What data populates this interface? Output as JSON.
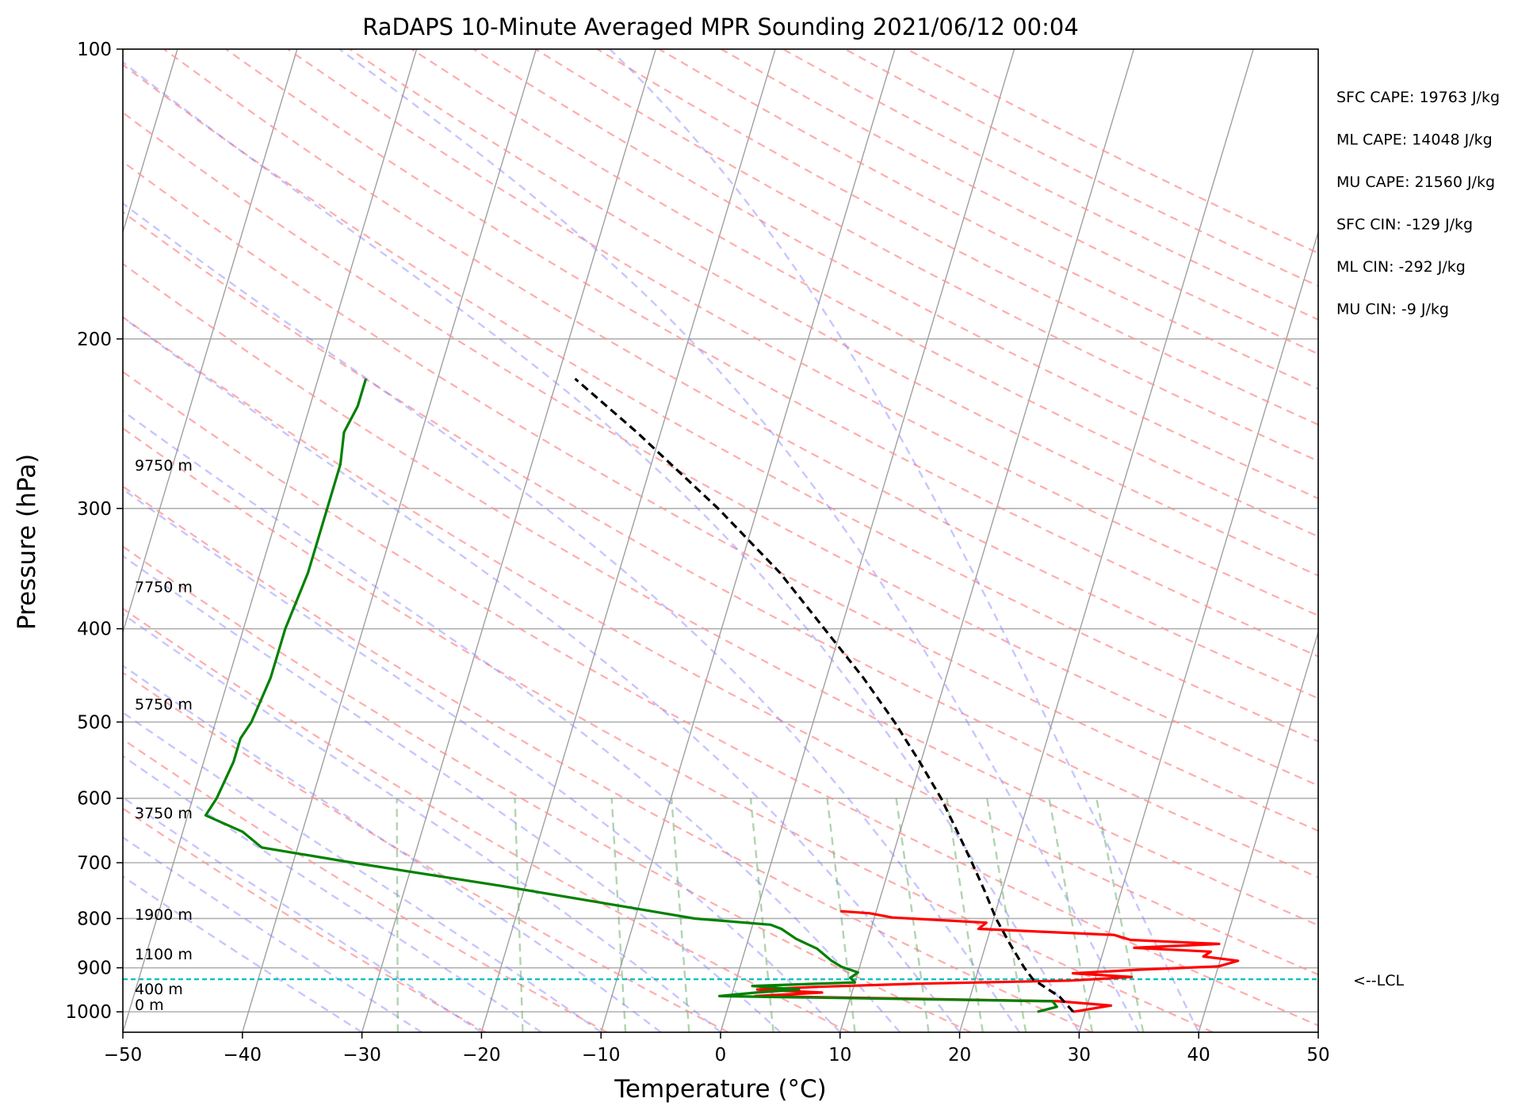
{
  "chart_data": {
    "type": "line",
    "subtype": "skew-t log-p sounding",
    "title": "RaDAPS 10-Minute Averaged MPR Sounding 2021/06/12 00:04",
    "xlabel": "Temperature (°C)",
    "ylabel": "Pressure (hPa)",
    "xlim": [
      -50,
      50
    ],
    "ylim": [
      1050,
      100
    ],
    "y_scale": "log",
    "grid": true,
    "x_ticks": [
      "−50",
      "−40",
      "−30",
      "−20",
      "−10",
      "0",
      "10",
      "20",
      "30",
      "40",
      "50"
    ],
    "y_ticks": [
      "100",
      "200",
      "300",
      "400",
      "500",
      "600",
      "700",
      "800",
      "900",
      "1000"
    ],
    "series": [
      {
        "key": "temperature",
        "color": "#ff0000",
        "points": [
          [
            1000,
            29.0
          ],
          [
            985,
            32.0
          ],
          [
            975,
            27.5
          ],
          [
            963,
            2.0
          ],
          [
            955,
            7.5
          ],
          [
            948,
            2.0
          ],
          [
            942,
            7.0
          ],
          [
            935,
            15.0
          ],
          [
            928,
            28.0
          ],
          [
            920,
            33.0
          ],
          [
            912,
            28.0
          ],
          [
            904,
            33.5
          ],
          [
            897,
            40.0
          ],
          [
            885,
            41.5
          ],
          [
            876,
            38.5
          ],
          [
            866,
            39.0
          ],
          [
            858,
            32.5
          ],
          [
            850,
            39.5
          ],
          [
            842,
            32.0
          ],
          [
            832,
            30.5
          ],
          [
            820,
            19.0
          ],
          [
            808,
            19.5
          ],
          [
            798,
            11.5
          ],
          [
            790,
            9.5
          ],
          [
            786,
            7.0
          ]
        ]
      },
      {
        "key": "dewpoint",
        "color": "#008000",
        "points": [
          [
            1000,
            26.0
          ],
          [
            988,
            27.5
          ],
          [
            975,
            27.0
          ],
          [
            963,
            -1.0
          ],
          [
            955,
            2.0
          ],
          [
            948,
            5.5
          ],
          [
            940,
            1.5
          ],
          [
            932,
            10.0
          ],
          [
            922,
            9.5
          ],
          [
            910,
            10.0
          ],
          [
            898,
            8.5
          ],
          [
            885,
            7.5
          ],
          [
            860,
            6.0
          ],
          [
            840,
            4.0
          ],
          [
            820,
            2.5
          ],
          [
            812,
            1.5
          ],
          [
            800,
            -5.0
          ],
          [
            780,
            -10.5
          ],
          [
            740,
            -22.0
          ],
          [
            700,
            -35.0
          ],
          [
            675,
            -43.0
          ],
          [
            650,
            -45.0
          ],
          [
            625,
            -48.5
          ],
          [
            600,
            -48.0
          ],
          [
            550,
            -47.5
          ],
          [
            520,
            -47.5
          ],
          [
            500,
            -47.0
          ],
          [
            450,
            -46.5
          ],
          [
            400,
            -46.5
          ],
          [
            350,
            -46.0
          ],
          [
            300,
            -46.0
          ],
          [
            270,
            -46.0
          ],
          [
            250,
            -46.5
          ],
          [
            235,
            -46.0
          ],
          [
            220,
            -46.0
          ]
        ]
      },
      {
        "key": "parcel",
        "color": "#000000",
        "style": "dashed",
        "points": [
          [
            1000,
            29.0
          ],
          [
            965,
            27.5
          ],
          [
            925,
            24.8
          ],
          [
            900,
            23.8
          ],
          [
            850,
            22.0
          ],
          [
            800,
            20.2
          ],
          [
            750,
            18.6
          ],
          [
            700,
            16.8
          ],
          [
            650,
            14.8
          ],
          [
            600,
            12.6
          ],
          [
            550,
            9.9
          ],
          [
            500,
            6.8
          ],
          [
            450,
            3.1
          ],
          [
            400,
            -1.4
          ],
          [
            350,
            -6.5
          ],
          [
            300,
            -13.3
          ],
          [
            250,
            -22.0
          ],
          [
            220,
            -28.5
          ]
        ]
      }
    ],
    "height_labels": [
      {
        "p": 1000,
        "label": "0 m"
      },
      {
        "p": 962,
        "label": "400 m"
      },
      {
        "p": 885,
        "label": "1100 m"
      },
      {
        "p": 805,
        "label": "1900 m"
      },
      {
        "p": 632,
        "label": "3750 m"
      },
      {
        "p": 487,
        "label": "5750 m"
      },
      {
        "p": 368,
        "label": "7750 m"
      },
      {
        "p": 275,
        "label": "9750 m"
      }
    ],
    "lcl": {
      "p": 925,
      "label": "<--LCL",
      "color": "#00c0c0"
    },
    "indices": [
      "SFC CAPE: 19763 J/kg",
      "ML CAPE: 14048 J/kg",
      "MU CAPE: 21560 J/kg",
      "SFC CIN: -129 J/kg",
      "ML CIN: -292 J/kg",
      "MU CIN: -9 J/kg"
    ],
    "colors": {
      "dry_adiabats": "#ff9090",
      "moist_adiabats": "#8080ff",
      "mixing_ratio": "#70b070",
      "isotherms": "#a0a0a0"
    }
  }
}
